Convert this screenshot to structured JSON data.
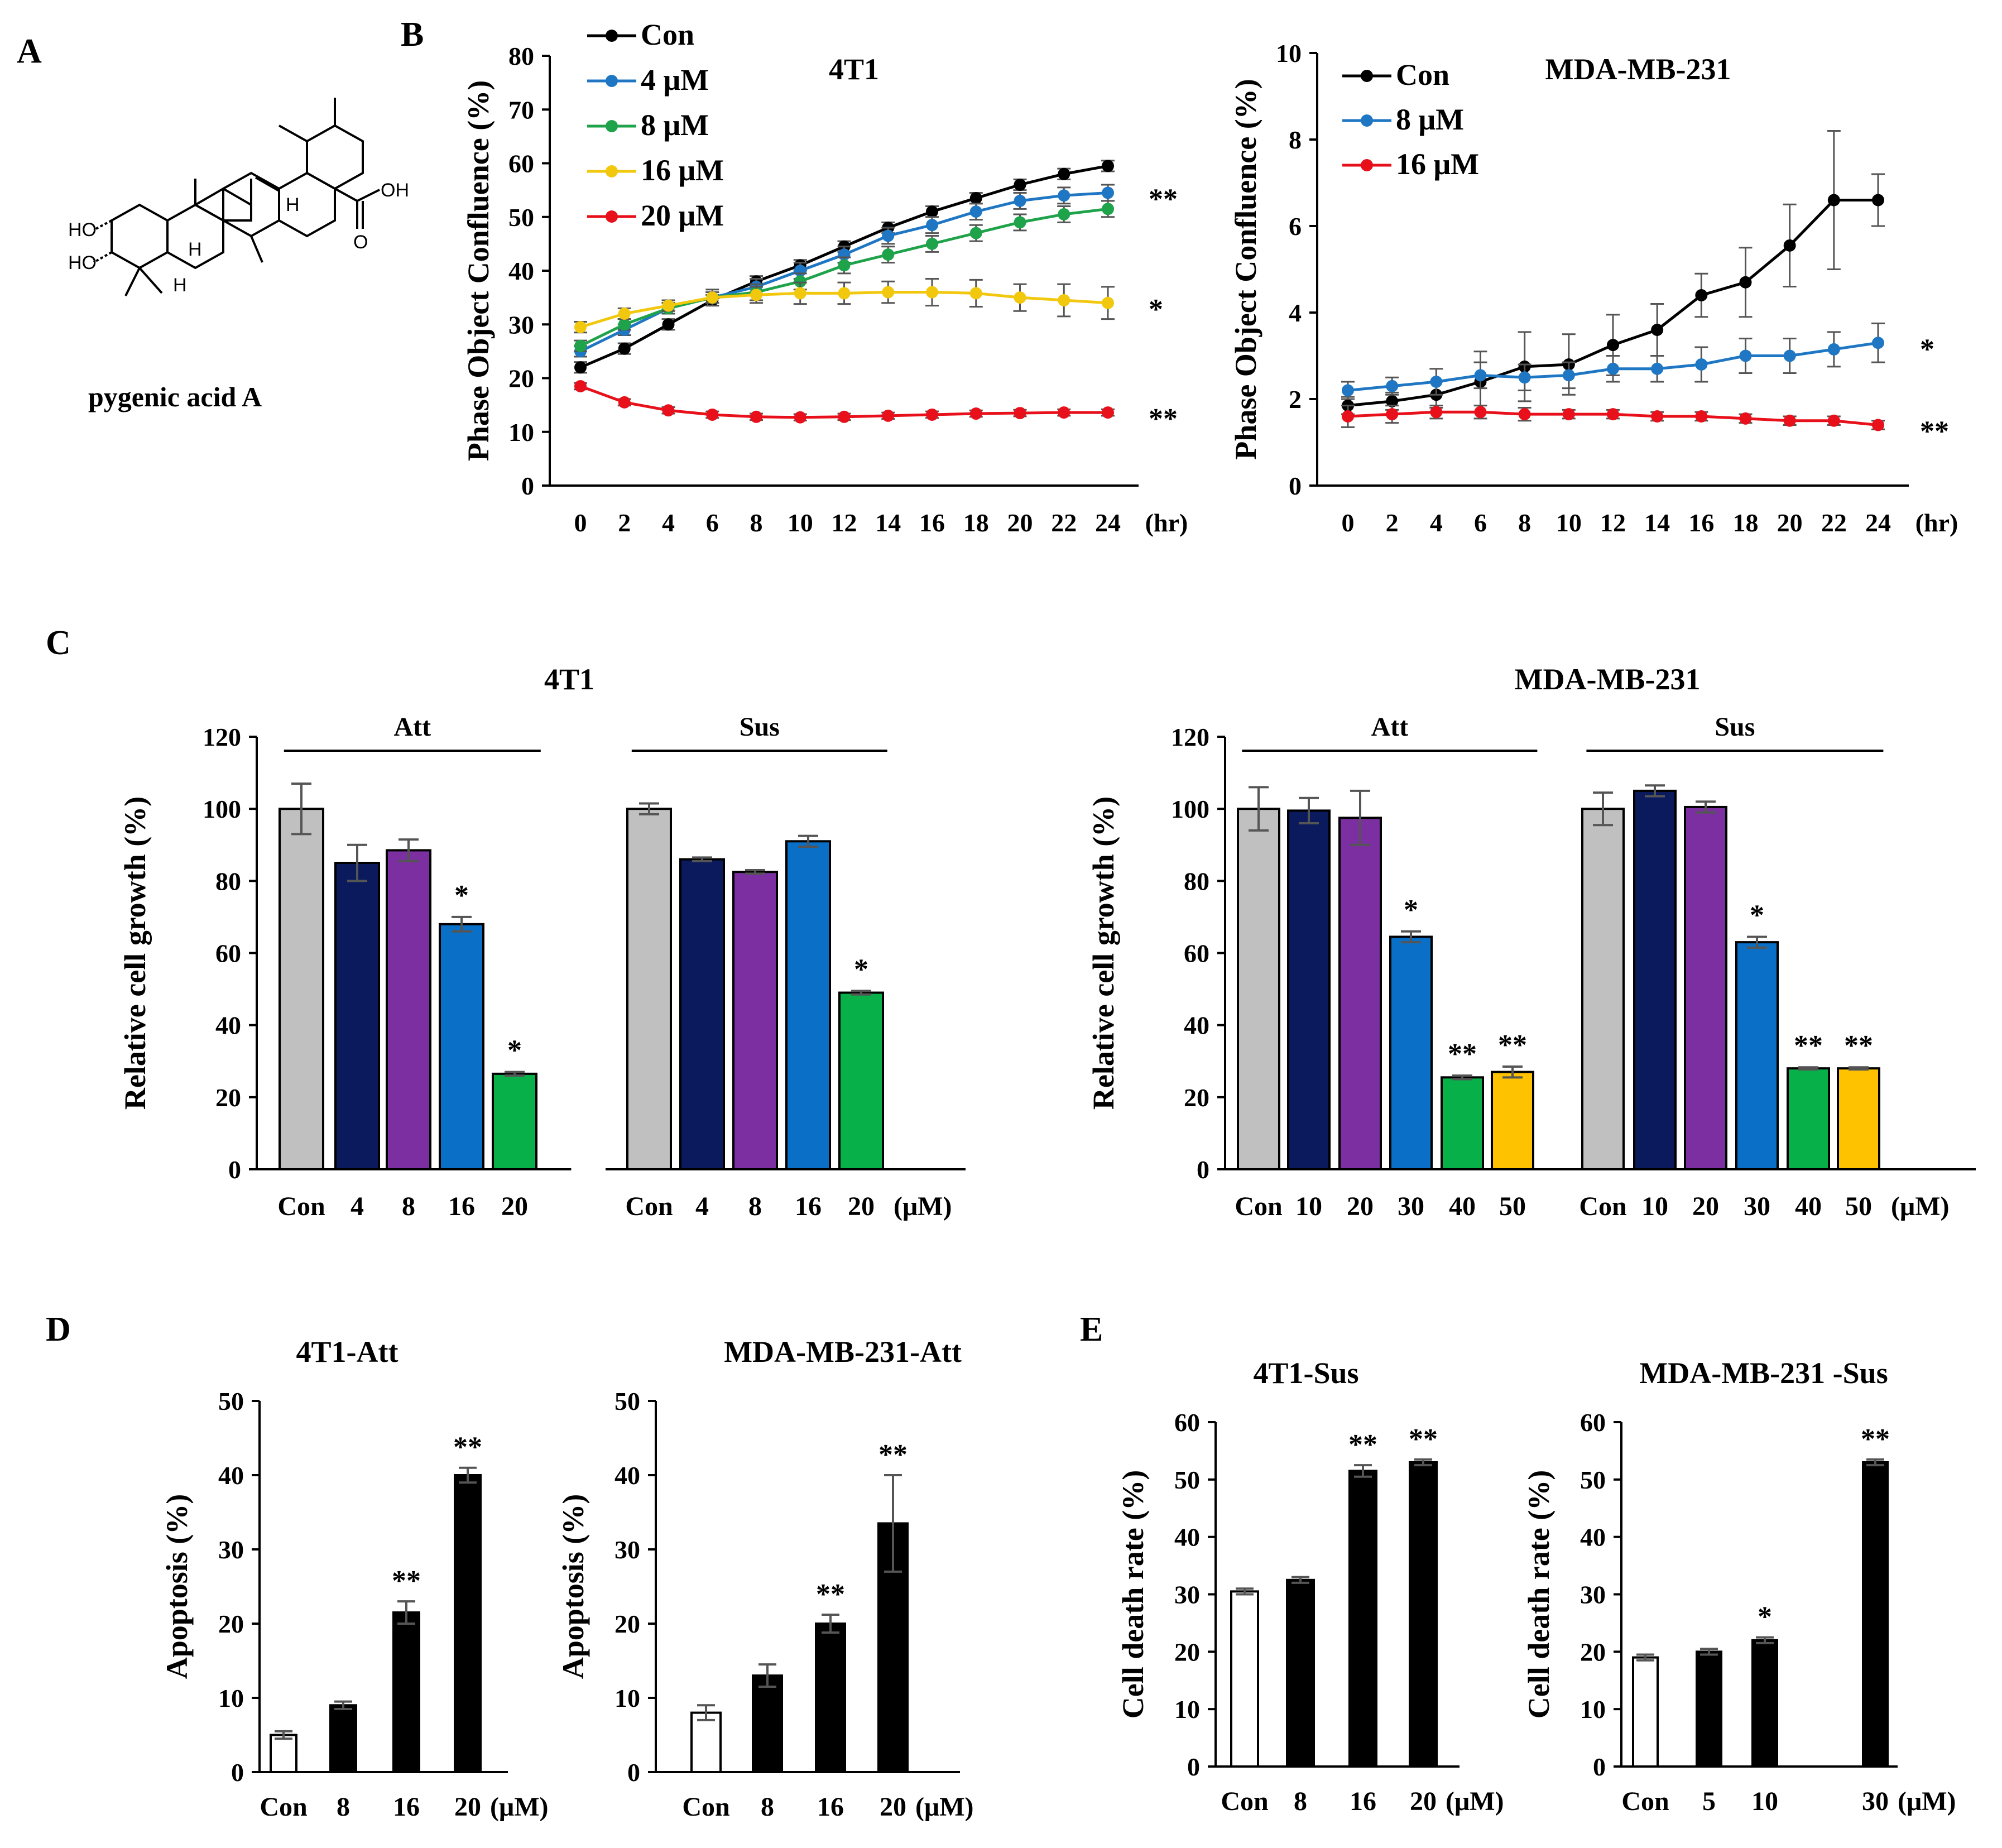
{
  "panel_labels": {
    "a": "A",
    "b": "B",
    "c": "C",
    "d": "D",
    "e": "E"
  },
  "compound": {
    "name": "pygenic acid A",
    "atoms": {
      "ho_upper": "HO",
      "ho_lower": "HO",
      "oh": "OH",
      "o": "O",
      "h1": "H",
      "h2": "H",
      "h3": "H"
    }
  },
  "colors": {
    "con": "#000000",
    "c4": "#1f77c4",
    "c8": "#1fa34a",
    "c16": "#f2c80f",
    "c20": "#e8101a",
    "bar_gray": "#c0c0c0",
    "bar_navy": "#0a1a5c",
    "bar_purple": "#7b2fa0",
    "bar_blue": "#0a6fc6",
    "bar_green": "#08b04a",
    "bar_yellow": "#ffc200",
    "bar_black": "#000000",
    "bar_white": "#ffffff"
  },
  "chart_data": [
    {
      "id": "b1",
      "type": "line",
      "title": "4T1",
      "ylabel": "Phase Object Confluence (%)",
      "xunit": "(hr)",
      "x": [
        0,
        2,
        4,
        6,
        8,
        10,
        12,
        14,
        16,
        18,
        20,
        22,
        24
      ],
      "ylim": [
        0,
        80
      ],
      "yticks": [
        0,
        10,
        20,
        30,
        40,
        50,
        60,
        70,
        80
      ],
      "series": [
        {
          "name": "Con",
          "color": "#000000",
          "values": [
            22,
            25.5,
            30,
            34.5,
            38,
            41,
            44.5,
            48,
            51,
            53.5,
            56,
            58,
            59.5
          ],
          "err": [
            1,
            1,
            1,
            1,
            1,
            1,
            1,
            1,
            1,
            1,
            1,
            1,
            1
          ]
        },
        {
          "name": "4 μM",
          "color": "#1f77c4",
          "values": [
            25,
            29,
            33,
            35,
            37,
            40,
            43,
            46.5,
            48.5,
            51,
            53,
            54,
            54.5
          ],
          "err": [
            1,
            1,
            1,
            1,
            1.5,
            1.5,
            1.5,
            1.5,
            1.5,
            1.5,
            1.5,
            1.5,
            1.5
          ]
        },
        {
          "name": "8 μM",
          "color": "#1fa34a",
          "values": [
            26,
            30,
            33,
            35,
            36,
            38,
            41,
            43,
            45,
            47,
            49,
            50.5,
            51.5
          ],
          "err": [
            1,
            1,
            1,
            1,
            1.5,
            1.5,
            1.5,
            1.5,
            1.5,
            1.5,
            1.5,
            1.5,
            1.5
          ]
        },
        {
          "name": "16 μM",
          "color": "#f2c80f",
          "values": [
            29.5,
            32,
            33.5,
            35,
            35.5,
            35.8,
            35.8,
            36,
            36,
            35.8,
            35,
            34.5,
            34
          ],
          "err": [
            1,
            1,
            1,
            1.5,
            1.5,
            2,
            2,
            2,
            2.5,
            2.5,
            2.5,
            3,
            3
          ]
        },
        {
          "name": "20 μM",
          "color": "#e8101a",
          "values": [
            18.5,
            15.5,
            14,
            13.2,
            12.8,
            12.7,
            12.8,
            13,
            13.2,
            13.4,
            13.5,
            13.6,
            13.6
          ],
          "err": [
            0.6,
            0.6,
            0.6,
            0.6,
            0.6,
            0.6,
            0.6,
            0.6,
            0.6,
            0.6,
            0.6,
            0.6,
            0.6
          ]
        }
      ],
      "annotations": [
        {
          "text": "**",
          "series": "4 μM"
        },
        {
          "text": "*",
          "series": "16 μM"
        },
        {
          "text": "**",
          "series": "20 μM"
        }
      ]
    },
    {
      "id": "b2",
      "type": "line",
      "title": "MDA-MB-231",
      "ylabel": "Phase Object Confluence (%)",
      "xunit": "(hr)",
      "x": [
        0,
        2,
        4,
        6,
        8,
        10,
        12,
        14,
        16,
        18,
        20,
        22,
        24
      ],
      "ylim": [
        0,
        10
      ],
      "yticks": [
        0,
        2,
        4,
        6,
        8,
        10
      ],
      "series": [
        {
          "name": "Con",
          "color": "#000000",
          "values": [
            1.85,
            1.95,
            2.1,
            2.4,
            2.75,
            2.8,
            3.25,
            3.6,
            4.4,
            4.7,
            5.55,
            6.6,
            6.6
          ],
          "err": [
            0.2,
            0.2,
            0.3,
            0.7,
            0.8,
            0.7,
            0.7,
            0.6,
            0.5,
            0.8,
            0.95,
            1.6,
            0.6
          ]
        },
        {
          "name": "8 μM",
          "color": "#1f77c4",
          "values": [
            2.2,
            2.3,
            2.4,
            2.55,
            2.5,
            2.55,
            2.7,
            2.7,
            2.8,
            3.0,
            3.0,
            3.15,
            3.3
          ],
          "err": [
            0.2,
            0.2,
            0.3,
            0.3,
            0.3,
            0.3,
            0.3,
            0.3,
            0.4,
            0.4,
            0.4,
            0.4,
            0.45
          ]
        },
        {
          "name": "16 μM",
          "color": "#e8101a",
          "values": [
            1.6,
            1.65,
            1.7,
            1.7,
            1.65,
            1.65,
            1.65,
            1.6,
            1.6,
            1.55,
            1.5,
            1.5,
            1.4
          ],
          "err": [
            0.25,
            0.2,
            0.15,
            0.15,
            0.15,
            0.1,
            0.1,
            0.1,
            0.1,
            0.1,
            0.1,
            0.1,
            0.1
          ]
        }
      ],
      "annotations": [
        {
          "text": "*",
          "series": "8 μM"
        },
        {
          "text": "**",
          "series": "16 μM"
        }
      ]
    },
    {
      "id": "c1",
      "type": "bar",
      "title": "4T1",
      "ylabel": "Relative cell growth (%)",
      "ylim": [
        0,
        120
      ],
      "yticks": [
        0,
        20,
        40,
        60,
        80,
        100,
        120
      ],
      "unit": "(μM)",
      "groups": [
        {
          "label": "Att",
          "categories": [
            "Con",
            "4",
            "8",
            "16",
            "20"
          ],
          "values": [
            100,
            85,
            88.5,
            68,
            26.5
          ],
          "err": [
            7,
            5,
            3,
            2,
            0.5
          ],
          "sig": [
            "",
            "",
            "",
            "*",
            "*"
          ],
          "colors": [
            "#c0c0c0",
            "#0a1a5c",
            "#7b2fa0",
            "#0a6fc6",
            "#08b04a"
          ]
        },
        {
          "label": "Sus",
          "categories": [
            "Con",
            "4",
            "8",
            "16",
            "20"
          ],
          "values": [
            100,
            86,
            82.5,
            91,
            49
          ],
          "err": [
            1.5,
            0.5,
            0.5,
            1.5,
            0.5
          ],
          "sig": [
            "",
            "",
            "",
            "",
            "*"
          ],
          "colors": [
            "#c0c0c0",
            "#0a1a5c",
            "#7b2fa0",
            "#0a6fc6",
            "#08b04a"
          ]
        }
      ]
    },
    {
      "id": "c2",
      "type": "bar",
      "title": "MDA-MB-231",
      "ylabel": "Relative cell growth (%)",
      "ylim": [
        0,
        120
      ],
      "yticks": [
        0,
        20,
        40,
        60,
        80,
        100,
        120
      ],
      "unit": "(μM)",
      "groups": [
        {
          "label": "Att",
          "categories": [
            "Con",
            "10",
            "20",
            "30",
            "40",
            "50"
          ],
          "values": [
            100,
            99.5,
            97.5,
            64.5,
            25.5,
            27
          ],
          "err": [
            6,
            3.5,
            7.5,
            1.5,
            0.5,
            1.5
          ],
          "sig": [
            "",
            "",
            "",
            "*",
            "**",
            "**"
          ],
          "colors": [
            "#c0c0c0",
            "#0a1a5c",
            "#7b2fa0",
            "#0a6fc6",
            "#08b04a",
            "#ffc200"
          ]
        },
        {
          "label": "Sus",
          "categories": [
            "Con",
            "10",
            "20",
            "30",
            "40",
            "50"
          ],
          "values": [
            100,
            105,
            100.5,
            63,
            28,
            28
          ],
          "err": [
            4.5,
            1.5,
            1.5,
            1.5,
            0.3,
            0.3
          ],
          "sig": [
            "",
            "",
            "",
            "*",
            "**",
            "**"
          ],
          "colors": [
            "#c0c0c0",
            "#0a1a5c",
            "#7b2fa0",
            "#0a6fc6",
            "#08b04a",
            "#ffc200"
          ]
        }
      ]
    },
    {
      "id": "d1",
      "type": "bar",
      "title": "4T1-Att",
      "ylabel": "Apoptosis (%)",
      "ylim": [
        0,
        50
      ],
      "yticks": [
        0,
        10,
        20,
        30,
        40,
        50
      ],
      "unit": "(μM)",
      "categories": [
        "Con",
        "8",
        "16",
        "20"
      ],
      "values": [
        5,
        9,
        21.5,
        40
      ],
      "err": [
        0.5,
        0.5,
        1.5,
        1
      ],
      "sig": [
        "",
        "",
        "**",
        "**"
      ],
      "colors": [
        "#ffffff",
        "#000000",
        "#000000",
        "#000000"
      ]
    },
    {
      "id": "d2",
      "type": "bar",
      "title": "MDA-MB-231-Att",
      "ylabel": "Apoptosis (%)",
      "ylim": [
        0,
        50
      ],
      "yticks": [
        0,
        10,
        20,
        30,
        40,
        50
      ],
      "unit": "(μM)",
      "categories": [
        "Con",
        "8",
        "16",
        "20"
      ],
      "values": [
        8,
        13,
        20,
        33.5
      ],
      "err": [
        1,
        1.5,
        1.2,
        6.5
      ],
      "sig": [
        "",
        "",
        "**",
        "**"
      ],
      "colors": [
        "#ffffff",
        "#000000",
        "#000000",
        "#000000"
      ]
    },
    {
      "id": "e1",
      "type": "bar",
      "title": "4T1-Sus",
      "ylabel": "Cell death rate (%)",
      "ylim": [
        0,
        60
      ],
      "yticks": [
        0,
        10,
        20,
        30,
        40,
        50,
        60
      ],
      "unit": "(μM)",
      "categories": [
        "Con",
        "8",
        "16",
        "20"
      ],
      "values": [
        30.5,
        32.5,
        51.5,
        53
      ],
      "err": [
        0.5,
        0.5,
        1,
        0.5
      ],
      "sig": [
        "",
        "",
        "**",
        "**"
      ],
      "colors": [
        "#ffffff",
        "#000000",
        "#000000",
        "#000000"
      ]
    },
    {
      "id": "e2",
      "type": "bar",
      "title": "MDA-MB-231 -Sus",
      "ylabel": "Cell death rate (%)",
      "ylim": [
        0,
        60
      ],
      "yticks": [
        0,
        10,
        20,
        30,
        40,
        50,
        60
      ],
      "unit": "(μM)",
      "categories": [
        "Con",
        "5",
        "10",
        "30"
      ],
      "values": [
        19,
        20,
        22,
        53
      ],
      "err": [
        0.5,
        0.5,
        0.5,
        0.5
      ],
      "sig": [
        "",
        "",
        "*",
        "**"
      ],
      "colors": [
        "#ffffff",
        "#000000",
        "#000000",
        "#000000"
      ]
    }
  ]
}
